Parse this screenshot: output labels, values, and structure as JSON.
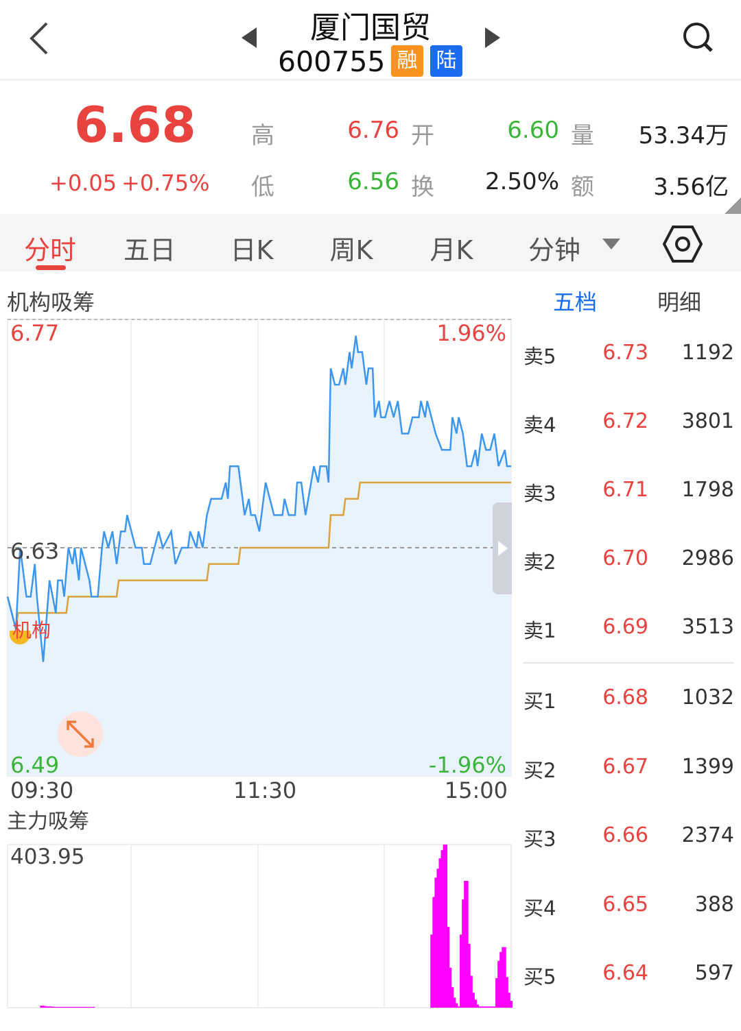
{
  "header": {
    "title": "厦门国贸",
    "code": "600755",
    "badges": [
      {
        "label": "融",
        "color": "#f7931e"
      },
      {
        "label": "陆",
        "color": "#1a6cf0"
      }
    ],
    "icons": [
      "back-icon",
      "prev-stock-icon",
      "next-stock-icon",
      "search-icon"
    ]
  },
  "quote": {
    "price": "6.68",
    "change": "+0.05",
    "change_pct": "+0.75%",
    "high_label": "高",
    "high": "6.76",
    "open_label": "开",
    "open": "6.60",
    "volume_label": "量",
    "volume": "53.34万",
    "low_label": "低",
    "low": "6.56",
    "turnover_label": "换",
    "turnover": "2.50%",
    "amount_label": "额",
    "amount": "3.56亿"
  },
  "tabs": [
    {
      "label": "分时",
      "active": true
    },
    {
      "label": "五日"
    },
    {
      "label": "日K"
    },
    {
      "label": "周K"
    },
    {
      "label": "月K"
    },
    {
      "label": "分钟",
      "dropdown": true
    }
  ],
  "colors": {
    "up": "#e8433f",
    "down": "#3ab53a",
    "accent": "#1a6cf0",
    "price_line": "#3c96f0",
    "avg_line": "#d9a23a",
    "bars": "#ff00ff"
  },
  "chart_data": [
    {
      "type": "line",
      "title": "机构吸筹",
      "ylim": [
        6.49,
        6.77
      ],
      "y_ticks_left": [
        "6.77",
        "6.63",
        "6.49"
      ],
      "y_ticks_right": [
        "1.96%",
        "-1.96%"
      ],
      "x_ticks": [
        "09:30",
        "11:30",
        "15:00"
      ],
      "prev_close": 6.63,
      "marker_label": "机构",
      "series": [
        {
          "points": [
            [
              "09:30",
              6.6
            ],
            [
              "09:32",
              6.59
            ],
            [
              "09:34",
              6.58
            ],
            [
              "09:36",
              6.63
            ],
            [
              "09:39",
              6.6
            ],
            [
              "09:41",
              6.6
            ],
            [
              "09:43",
              6.62
            ],
            [
              "09:44",
              6.6
            ],
            [
              "09:47",
              6.56
            ],
            [
              "09:50",
              6.61
            ],
            [
              "09:53",
              6.59
            ],
            [
              "09:54",
              6.61
            ],
            [
              "09:56",
              6.61
            ],
            [
              "09:57",
              6.6
            ],
            [
              "09:59",
              6.63
            ],
            [
              "10:01",
              6.62
            ],
            [
              "10:02",
              6.63
            ],
            [
              "10:04",
              6.61
            ],
            [
              "10:05",
              6.63
            ],
            [
              "10:07",
              6.62
            ],
            [
              "10:09",
              6.61
            ],
            [
              "10:10",
              6.6
            ],
            [
              "10:13",
              6.6
            ],
            [
              "10:15",
              6.63
            ],
            [
              "10:16",
              6.64
            ],
            [
              "10:18",
              6.63
            ],
            [
              "10:20",
              6.64
            ],
            [
              "10:22",
              6.62
            ],
            [
              "10:24",
              6.64
            ],
            [
              "10:26",
              6.64
            ],
            [
              "10:27",
              6.65
            ],
            [
              "10:29",
              6.64
            ],
            [
              "10:31",
              6.63
            ],
            [
              "10:34",
              6.63
            ],
            [
              "10:35",
              6.62
            ],
            [
              "10:38",
              6.62
            ],
            [
              "10:40",
              6.63
            ],
            [
              "10:42",
              6.64
            ],
            [
              "10:44",
              6.63
            ],
            [
              "10:48",
              6.64
            ],
            [
              "10:50",
              6.62
            ],
            [
              "10:53",
              6.63
            ],
            [
              "10:56",
              6.63
            ],
            [
              "10:57",
              6.64
            ],
            [
              "11:00",
              6.63
            ],
            [
              "11:01",
              6.64
            ],
            [
              "11:03",
              6.63
            ],
            [
              "11:05",
              6.65
            ],
            [
              "11:07",
              6.66
            ],
            [
              "11:12",
              6.66
            ],
            [
              "11:14",
              6.67
            ],
            [
              "11:15",
              6.66
            ],
            [
              "11:16",
              6.68
            ],
            [
              "11:20",
              6.68
            ],
            [
              "11:23",
              6.65
            ],
            [
              "11:25",
              6.66
            ],
            [
              "11:26",
              6.65
            ],
            [
              "11:28",
              6.65
            ],
            [
              "11:30",
              6.64
            ],
            [
              "13:02",
              6.66
            ],
            [
              "13:03",
              6.67
            ],
            [
              "13:05",
              6.66
            ],
            [
              "13:07",
              6.65
            ],
            [
              "13:11",
              6.65
            ],
            [
              "13:12",
              6.66
            ],
            [
              "13:14",
              6.65
            ],
            [
              "13:17",
              6.65
            ],
            [
              "13:18",
              6.67
            ],
            [
              "13:20",
              6.67
            ],
            [
              "13:22",
              6.65
            ],
            [
              "13:26",
              6.68
            ],
            [
              "13:28",
              6.67
            ],
            [
              "13:29",
              6.68
            ],
            [
              "13:32",
              6.68
            ],
            [
              "13:33",
              6.67
            ],
            [
              "13:34",
              6.74
            ],
            [
              "13:36",
              6.73
            ],
            [
              "13:38",
              6.73
            ],
            [
              "13:40",
              6.74
            ],
            [
              "13:41",
              6.73
            ],
            [
              "13:43",
              6.75
            ],
            [
              "13:44",
              6.74
            ],
            [
              "13:46",
              6.76
            ],
            [
              "13:47",
              6.75
            ],
            [
              "13:49",
              6.75
            ],
            [
              "13:51",
              6.73
            ],
            [
              "13:52",
              6.74
            ],
            [
              "13:54",
              6.74
            ],
            [
              "13:55",
              6.71
            ],
            [
              "13:57",
              6.72
            ],
            [
              "13:58",
              6.71
            ],
            [
              "14:00",
              6.71
            ],
            [
              "14:02",
              6.72
            ],
            [
              "14:04",
              6.71
            ],
            [
              "14:06",
              6.72
            ],
            [
              "14:08",
              6.7
            ],
            [
              "14:11",
              6.7
            ],
            [
              "14:13",
              6.71
            ],
            [
              "14:16",
              6.71
            ],
            [
              "14:17",
              6.72
            ],
            [
              "14:19",
              6.71
            ],
            [
              "14:20",
              6.72
            ],
            [
              "14:22",
              6.71
            ],
            [
              "14:24",
              6.7
            ],
            [
              "14:27",
              6.69
            ],
            [
              "14:31",
              6.69
            ],
            [
              "14:32",
              6.71
            ],
            [
              "14:34",
              6.7
            ],
            [
              "14:35",
              6.71
            ],
            [
              "14:37",
              6.7
            ],
            [
              "14:39",
              6.68
            ],
            [
              "14:41",
              6.68
            ],
            [
              "14:43",
              6.69
            ],
            [
              "14:44",
              6.68
            ],
            [
              "14:46",
              6.7
            ],
            [
              "14:48",
              6.69
            ],
            [
              "14:50",
              6.69
            ],
            [
              "14:52",
              6.7
            ],
            [
              "14:54",
              6.68
            ],
            [
              "14:57",
              6.69
            ],
            [
              "14:58",
              6.68
            ],
            [
              "15:00",
              6.68
            ]
          ]
        },
        {
          "points": [
            [
              "09:30",
              6.6
            ],
            [
              "09:32",
              6.59
            ],
            [
              "09:34",
              6.58
            ],
            [
              "09:35",
              6.59
            ],
            [
              "09:58",
              6.59
            ],
            [
              "09:59",
              6.6
            ],
            [
              "10:22",
              6.6
            ],
            [
              "10:23",
              6.61
            ],
            [
              "11:05",
              6.61
            ],
            [
              "11:06",
              6.62
            ],
            [
              "11:20",
              6.62
            ],
            [
              "11:21",
              6.63
            ],
            [
              "13:33",
              6.63
            ],
            [
              "13:34",
              6.65
            ],
            [
              "13:40",
              6.65
            ],
            [
              "13:41",
              6.66
            ],
            [
              "13:47",
              6.66
            ],
            [
              "13:48",
              6.67
            ],
            [
              "15:00",
              6.67
            ]
          ]
        }
      ]
    },
    {
      "type": "bar",
      "title": "主力吸筹",
      "ylim": [
        0,
        403.95
      ],
      "y_tick_top": "403.95",
      "segments": [
        {
          "start": "09:46",
          "values": [
            5,
            5,
            4,
            3,
            3,
            3,
            2,
            2,
            2,
            2,
            2,
            2,
            2,
            2,
            2,
            2,
            2,
            2,
            2,
            2,
            2,
            2,
            2,
            2,
            2,
            2
          ]
        },
        {
          "start": "14:22",
          "values": [
            181,
            274,
            322,
            344,
            370,
            390,
            404,
            404,
            200,
            99,
            51,
            25,
            11,
            3,
            181,
            268,
            314,
            314,
            158,
            79,
            37,
            20,
            8,
            3,
            3,
            3,
            3,
            3,
            3,
            3,
            3,
            73,
            116,
            138,
            150,
            150,
            76,
            37,
            17
          ]
        }
      ]
    }
  ],
  "orderbook": {
    "tabs": [
      {
        "label": "五档",
        "active": true
      },
      {
        "label": "明细"
      }
    ],
    "asks": [
      {
        "label": "卖5",
        "price": "6.73",
        "vol": "1192"
      },
      {
        "label": "卖4",
        "price": "6.72",
        "vol": "3801"
      },
      {
        "label": "卖3",
        "price": "6.71",
        "vol": "1798"
      },
      {
        "label": "卖2",
        "price": "6.70",
        "vol": "2986"
      },
      {
        "label": "卖1",
        "price": "6.69",
        "vol": "3513"
      }
    ],
    "bids": [
      {
        "label": "买1",
        "price": "6.68",
        "vol": "1032"
      },
      {
        "label": "买2",
        "price": "6.67",
        "vol": "1399"
      },
      {
        "label": "买3",
        "price": "6.66",
        "vol": "2374"
      },
      {
        "label": "买4",
        "price": "6.65",
        "vol": "388"
      },
      {
        "label": "买5",
        "price": "6.64",
        "vol": "597"
      }
    ]
  }
}
